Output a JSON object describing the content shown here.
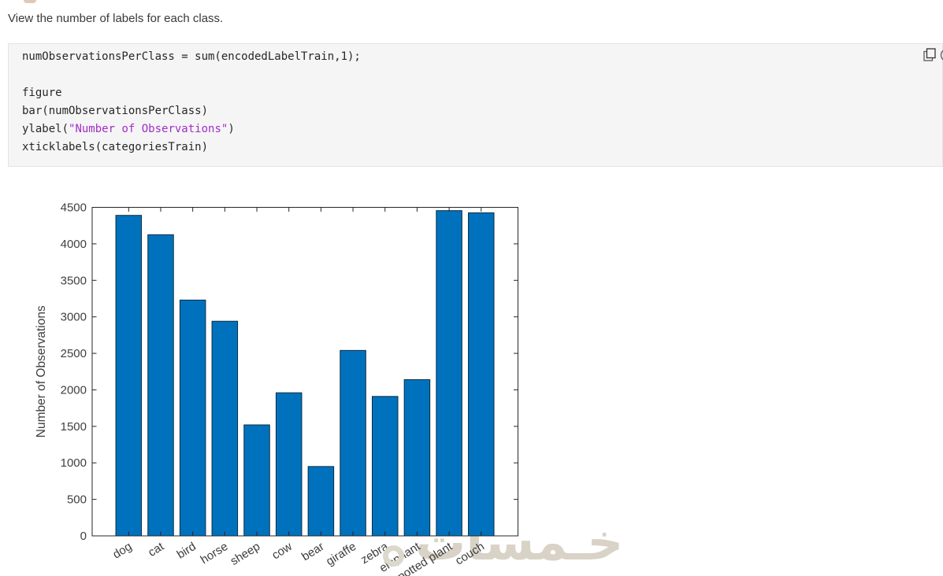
{
  "intro": "View the number of labels for each class.",
  "code_block": {
    "lines": [
      [
        {
          "text": "numObservationsPerClass = sum(encodedLabelTrain,1);",
          "type": "plain"
        }
      ],
      [],
      [
        {
          "text": "figure",
          "type": "plain"
        }
      ],
      [
        {
          "text": "bar(numObservationsPerClass)",
          "type": "plain"
        }
      ],
      [
        {
          "text": "ylabel(",
          "type": "plain"
        },
        {
          "text": "\"Number of Observations\"",
          "type": "string"
        },
        {
          "text": ")",
          "type": "plain"
        }
      ],
      [
        {
          "text": "xticklabels(categoriesTrain)",
          "type": "plain"
        }
      ]
    ],
    "string_color": "#a32cc9",
    "background": "#f5f5f5",
    "copy_icon": "copy-icon"
  },
  "chart_data": {
    "type": "bar",
    "categories": [
      "dog",
      "cat",
      "bird",
      "horse",
      "sheep",
      "cow",
      "bear",
      "giraffe",
      "zebra",
      "elephant",
      "potted plant",
      "couch"
    ],
    "values": [
      4390,
      4125,
      3230,
      2940,
      1520,
      1960,
      950,
      2540,
      1910,
      2140,
      4455,
      4425
    ],
    "title": "",
    "xlabel": "",
    "ylabel": "Number of Observations",
    "ylim": [
      0,
      4500
    ],
    "yticks": [
      0,
      500,
      1000,
      1500,
      2000,
      2500,
      3000,
      3500,
      4000,
      4500
    ],
    "grid": false,
    "legend": null,
    "bar_color": "#0072BD",
    "bar_edge_color": "#0d2a42",
    "axis_color": "#262626",
    "tick_label_color": "#404040",
    "x_label_rotation_deg": -32
  },
  "watermark": {
    "text": "خـمسات",
    "color": "#d9d3c7"
  }
}
